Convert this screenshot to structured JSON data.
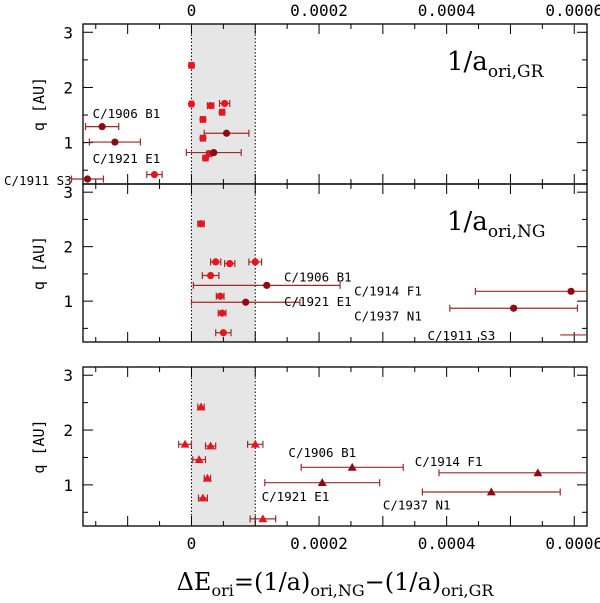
{
  "chart_data": {
    "type": "scatter",
    "x_axis": {
      "label_prefix": "ΔE",
      "label_prefix_sub": "ori",
      "label_eq": "=(1/a)",
      "label_sub1": "ori,NG",
      "label_minus": "−(1/a)",
      "label_sub2": "ori,GR",
      "range": [
        -0.00017,
        0.00062
      ],
      "top_ticks": [
        "0",
        "0.0002",
        "0.0004",
        "0.0006"
      ],
      "bottom_ticks": [
        "0",
        "0.0002",
        "0.0004",
        "0.0006"
      ],
      "tick_values": [
        0,
        0.0002,
        0.0004,
        0.0006
      ]
    },
    "y_axis": {
      "label": "q [AU]",
      "range": [
        0.25,
        3.15
      ],
      "ticks": [
        "1",
        "2",
        "3"
      ],
      "tick_values": [
        1,
        2,
        3
      ]
    },
    "shaded_band": [
      0,
      0.0001
    ],
    "colors": {
      "bright": "#e8141e",
      "dark": "#8b0d14",
      "errbar": "#a0282d"
    },
    "panels": [
      {
        "title": "1/a",
        "title_sub": "ori,GR",
        "marker": "circle",
        "points": [
          {
            "x": 0.0,
            "y": 2.4,
            "xerr": 4e-06,
            "dark": false
          },
          {
            "x": 0.0,
            "y": 1.7,
            "xerr": 3e-06,
            "dark": false
          },
          {
            "x": 1.8e-05,
            "y": 1.42,
            "xerr": 4e-06,
            "dark": false
          },
          {
            "x": 3e-05,
            "y": 1.67,
            "xerr": 5e-06,
            "dark": false
          },
          {
            "x": 4.8e-05,
            "y": 1.55,
            "xerr": 4e-06,
            "dark": false
          },
          {
            "x": 5.2e-05,
            "y": 1.71,
            "xerr": 8e-06,
            "dark": false
          },
          {
            "x": 1.8e-05,
            "y": 1.08,
            "xerr": 4e-06,
            "dark": false
          },
          {
            "x": 2.8e-05,
            "y": 0.8,
            "xerr": 4e-06,
            "dark": false
          },
          {
            "x": 2.2e-05,
            "y": 0.72,
            "xerr": 4e-06,
            "dark": false
          },
          {
            "x": -5.8e-05,
            "y": 0.42,
            "xerr": 1.2e-05,
            "dark": false
          },
          {
            "x": -0.00014,
            "y": 1.29,
            "xerr": 2.6e-05,
            "dark": true
          },
          {
            "x": -0.00012,
            "y": 1.01,
            "xerr": 4e-05,
            "dark": true
          },
          {
            "x": 5.5e-05,
            "y": 1.17,
            "xerr": 3.5e-05,
            "dark": true
          },
          {
            "x": 3.5e-05,
            "y": 0.82,
            "xerr": 4.3e-05,
            "dark": true
          },
          {
            "x": -0.000163,
            "y": 0.34,
            "xerr": 2.5e-05,
            "dark": true
          }
        ],
        "labels": [
          {
            "text": "C/1906 B1",
            "x": -0.000155,
            "y": 1.52,
            "anchor": "start"
          },
          {
            "text": "C/1921 E1",
            "x": -0.000155,
            "y": 0.7,
            "anchor": "start"
          },
          {
            "text": "C/1911 S3",
            "x": -0.000168,
            "y": 0.3,
            "anchor": "end_left"
          }
        ]
      },
      {
        "title": "1/a",
        "title_sub": "ori,NG",
        "marker": "circle",
        "points": [
          {
            "x": 1.5e-05,
            "y": 2.42,
            "xerr": 5e-06,
            "dark": false
          },
          {
            "x": 3.8e-05,
            "y": 1.72,
            "xerr": 8e-06,
            "dark": false
          },
          {
            "x": 6e-05,
            "y": 1.69,
            "xerr": 8e-06,
            "dark": false
          },
          {
            "x": 0.0001,
            "y": 1.72,
            "xerr": 1e-05,
            "dark": false
          },
          {
            "x": 3e-05,
            "y": 1.47,
            "xerr": 1.3e-05,
            "dark": false
          },
          {
            "x": 4.5e-05,
            "y": 1.09,
            "xerr": 6e-06,
            "dark": false
          },
          {
            "x": 4.8e-05,
            "y": 0.78,
            "xerr": 6e-06,
            "dark": false
          },
          {
            "x": 5e-05,
            "y": 0.42,
            "xerr": 1.2e-05,
            "dark": false
          },
          {
            "x": 0.000118,
            "y": 1.29,
            "xerr": 0.000115,
            "dark": true
          },
          {
            "x": 8.5e-05,
            "y": 0.98,
            "xerr": 8.5e-05,
            "dark": true
          },
          {
            "x": 0.000595,
            "y": 1.18,
            "xerr": 0.00015,
            "dark": true
          },
          {
            "x": 0.000505,
            "y": 0.87,
            "xerr": 0.0001,
            "dark": true
          }
        ],
        "labels": [
          {
            "text": "C/1906 B1",
            "x": 0.000145,
            "y": 1.43,
            "anchor": "start"
          },
          {
            "text": "C/1921 E1",
            "x": 0.000145,
            "y": 0.98,
            "anchor": "start"
          },
          {
            "text": "C/1914 F1",
            "x": 0.000255,
            "y": 1.18,
            "anchor": "start"
          },
          {
            "text": "C/1937 N1",
            "x": 0.000255,
            "y": 0.72,
            "anchor": "start"
          },
          {
            "text": "C/1911 S3",
            "x": 0.00037,
            "y": 0.36,
            "anchor": "start"
          }
        ],
        "arrow_line": {
          "x1": 0.000578,
          "x2": 0.00062,
          "y": 0.38
        }
      },
      {
        "title": "",
        "title_sub": "",
        "marker": "triangle",
        "points": [
          {
            "x": 1.5e-05,
            "y": 2.42,
            "xerr": 5e-06,
            "dark": false
          },
          {
            "x": -1e-05,
            "y": 1.74,
            "xerr": 1e-05,
            "dark": false
          },
          {
            "x": 3e-05,
            "y": 1.71,
            "xerr": 8e-06,
            "dark": false
          },
          {
            "x": 0.0001,
            "y": 1.74,
            "xerr": 1.2e-05,
            "dark": false
          },
          {
            "x": 1.2e-05,
            "y": 1.46,
            "xerr": 1e-05,
            "dark": false
          },
          {
            "x": 2.5e-05,
            "y": 1.12,
            "xerr": 5e-06,
            "dark": false
          },
          {
            "x": 1.8e-05,
            "y": 0.76,
            "xerr": 7e-06,
            "dark": false
          },
          {
            "x": 0.000112,
            "y": 0.38,
            "xerr": 2e-05,
            "dark": false
          },
          {
            "x": 0.000252,
            "y": 1.32,
            "xerr": 8e-05,
            "dark": true
          },
          {
            "x": 0.000205,
            "y": 1.04,
            "xerr": 9e-05,
            "dark": true
          },
          {
            "x": 0.000543,
            "y": 1.22,
            "xerr": 0.000155,
            "dark": true
          },
          {
            "x": 0.00047,
            "y": 0.87,
            "xerr": 0.000108,
            "dark": true
          }
        ],
        "labels": [
          {
            "text": "C/1906 B1",
            "x": 0.000152,
            "y": 1.58,
            "anchor": "start"
          },
          {
            "text": "C/1921 E1",
            "x": 0.00011,
            "y": 0.78,
            "anchor": "start"
          },
          {
            "text": "C/1914 F1",
            "x": 0.00035,
            "y": 1.42,
            "anchor": "start"
          },
          {
            "text": "C/1937 N1",
            "x": 0.0003,
            "y": 0.62,
            "anchor": "start"
          }
        ]
      }
    ]
  }
}
